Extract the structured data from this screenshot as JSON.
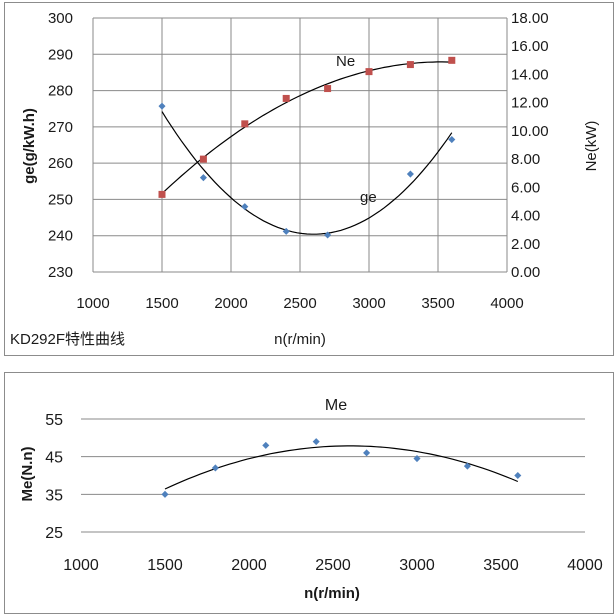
{
  "colors": {
    "ne_marker": "#c0504d",
    "ge_marker": "#4f81bd",
    "me_marker": "#4f81bd",
    "curve": "#000000"
  },
  "chart_data": [
    {
      "type": "scatter",
      "title": "",
      "caption": "KD292F特性曲线",
      "xlabel": "n(r/min)",
      "ylabel": "ge(g/kW.h)",
      "y2label": "Ne(kW)",
      "xlim": [
        1000,
        4000
      ],
      "ylim": [
        230,
        300
      ],
      "y2lim": [
        0,
        18
      ],
      "x_ticks": [
        "1000",
        "1500",
        "2000",
        "2500",
        "3000",
        "3500",
        "4000"
      ],
      "y_ticks": [
        "230",
        "240",
        "250",
        "260",
        "270",
        "280",
        "290",
        "300"
      ],
      "y2_ticks": [
        "0.00",
        "2.00",
        "4.00",
        "6.00",
        "8.00",
        "10.00",
        "12.00",
        "14.00",
        "16.00",
        "18.00"
      ],
      "grid": true,
      "series": [
        {
          "name": "ge",
          "axis": "left",
          "x": [
            1500,
            1800,
            2100,
            2400,
            2700,
            3300,
            3600
          ],
          "values": [
            275.7,
            256,
            248,
            241.2,
            240.2,
            257,
            266.5
          ]
        },
        {
          "name": "Ne",
          "axis": "right",
          "x": [
            1500,
            1800,
            2100,
            2400,
            2700,
            3000,
            3300,
            3600
          ],
          "values": [
            5.5,
            8,
            10.5,
            12.3,
            13,
            14.2,
            14.7,
            15
          ]
        }
      ]
    },
    {
      "type": "scatter",
      "title": "Me",
      "xlabel": "n(r/min)",
      "ylabel": "Me(N.n)",
      "xlim": [
        1000,
        4000
      ],
      "ylim": [
        25,
        55
      ],
      "x_ticks": [
        "1000",
        "1500",
        "2000",
        "2500",
        "3000",
        "3500",
        "4000"
      ],
      "y_ticks": [
        "25",
        "35",
        "45",
        "55"
      ],
      "grid": true,
      "series": [
        {
          "name": "Me",
          "x": [
            1500,
            1800,
            2100,
            2400,
            2700,
            3000,
            3300,
            3600
          ],
          "values": [
            35,
            42,
            48,
            49,
            46,
            44.5,
            42.5,
            40
          ]
        }
      ]
    }
  ]
}
